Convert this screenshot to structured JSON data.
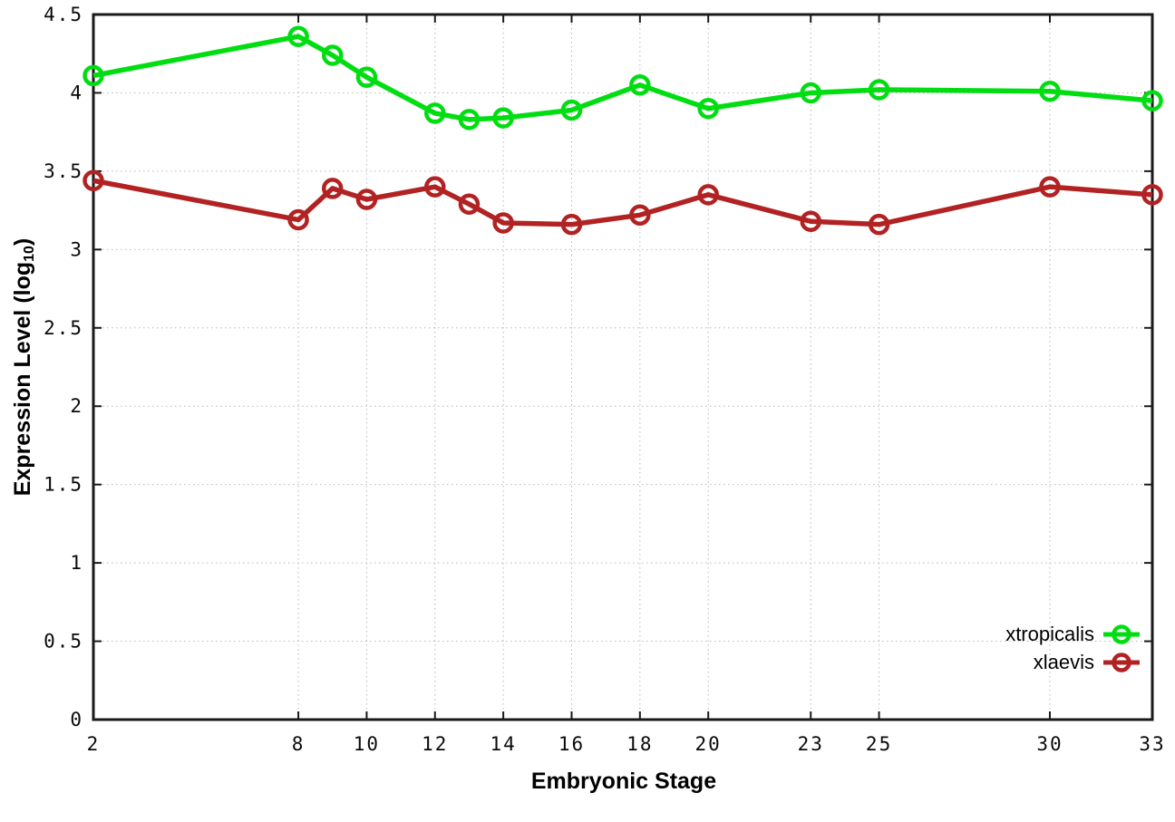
{
  "chart_data": {
    "type": "line",
    "title": "",
    "xlabel": "Embryonic Stage",
    "ylabel": "Expression Level (log10)",
    "ylabel_parts": {
      "prefix": "Expression Level (log",
      "sub": "10",
      "suffix": ")"
    },
    "x": [
      2,
      8,
      9,
      10,
      12,
      13,
      14,
      16,
      18,
      20,
      23,
      25,
      30,
      33
    ],
    "series": [
      {
        "name": "xtropicalis",
        "color": "#00dd11",
        "values": [
          4.11,
          4.36,
          4.24,
          4.1,
          3.87,
          3.83,
          3.84,
          3.89,
          4.05,
          3.9,
          4.0,
          4.02,
          4.01,
          3.95
        ]
      },
      {
        "name": "xlaevis",
        "color": "#b22222",
        "values": [
          3.44,
          3.19,
          3.39,
          3.32,
          3.4,
          3.29,
          3.17,
          3.16,
          3.22,
          3.35,
          3.18,
          3.16,
          3.4,
          3.35
        ]
      }
    ],
    "xlim": [
      2,
      33
    ],
    "ylim": [
      0,
      4.5
    ],
    "x_ticks": {
      "values": [
        2,
        8,
        10,
        12,
        14,
        16,
        18,
        20,
        23,
        25,
        30,
        33
      ],
      "labels": [
        "2",
        "8",
        "10",
        "12",
        "14",
        "16",
        "18",
        "20",
        "23",
        "25",
        "30",
        "33"
      ]
    },
    "y_ticks": {
      "values": [
        0,
        0.5,
        1,
        1.5,
        2,
        2.5,
        3,
        3.5,
        4,
        4.5
      ],
      "labels": [
        "0",
        "0.5",
        "1",
        "1.5",
        "2",
        "2.5",
        "3",
        "3.5",
        "4",
        "4.5"
      ]
    },
    "grid": true,
    "legend_position": "inside-bottom-right",
    "marker": "open-circle"
  },
  "style": {
    "background": "#ffffff",
    "border_color": "#1a1a1a",
    "grid_color": "#b8b8b8",
    "text_color": "#000000"
  }
}
